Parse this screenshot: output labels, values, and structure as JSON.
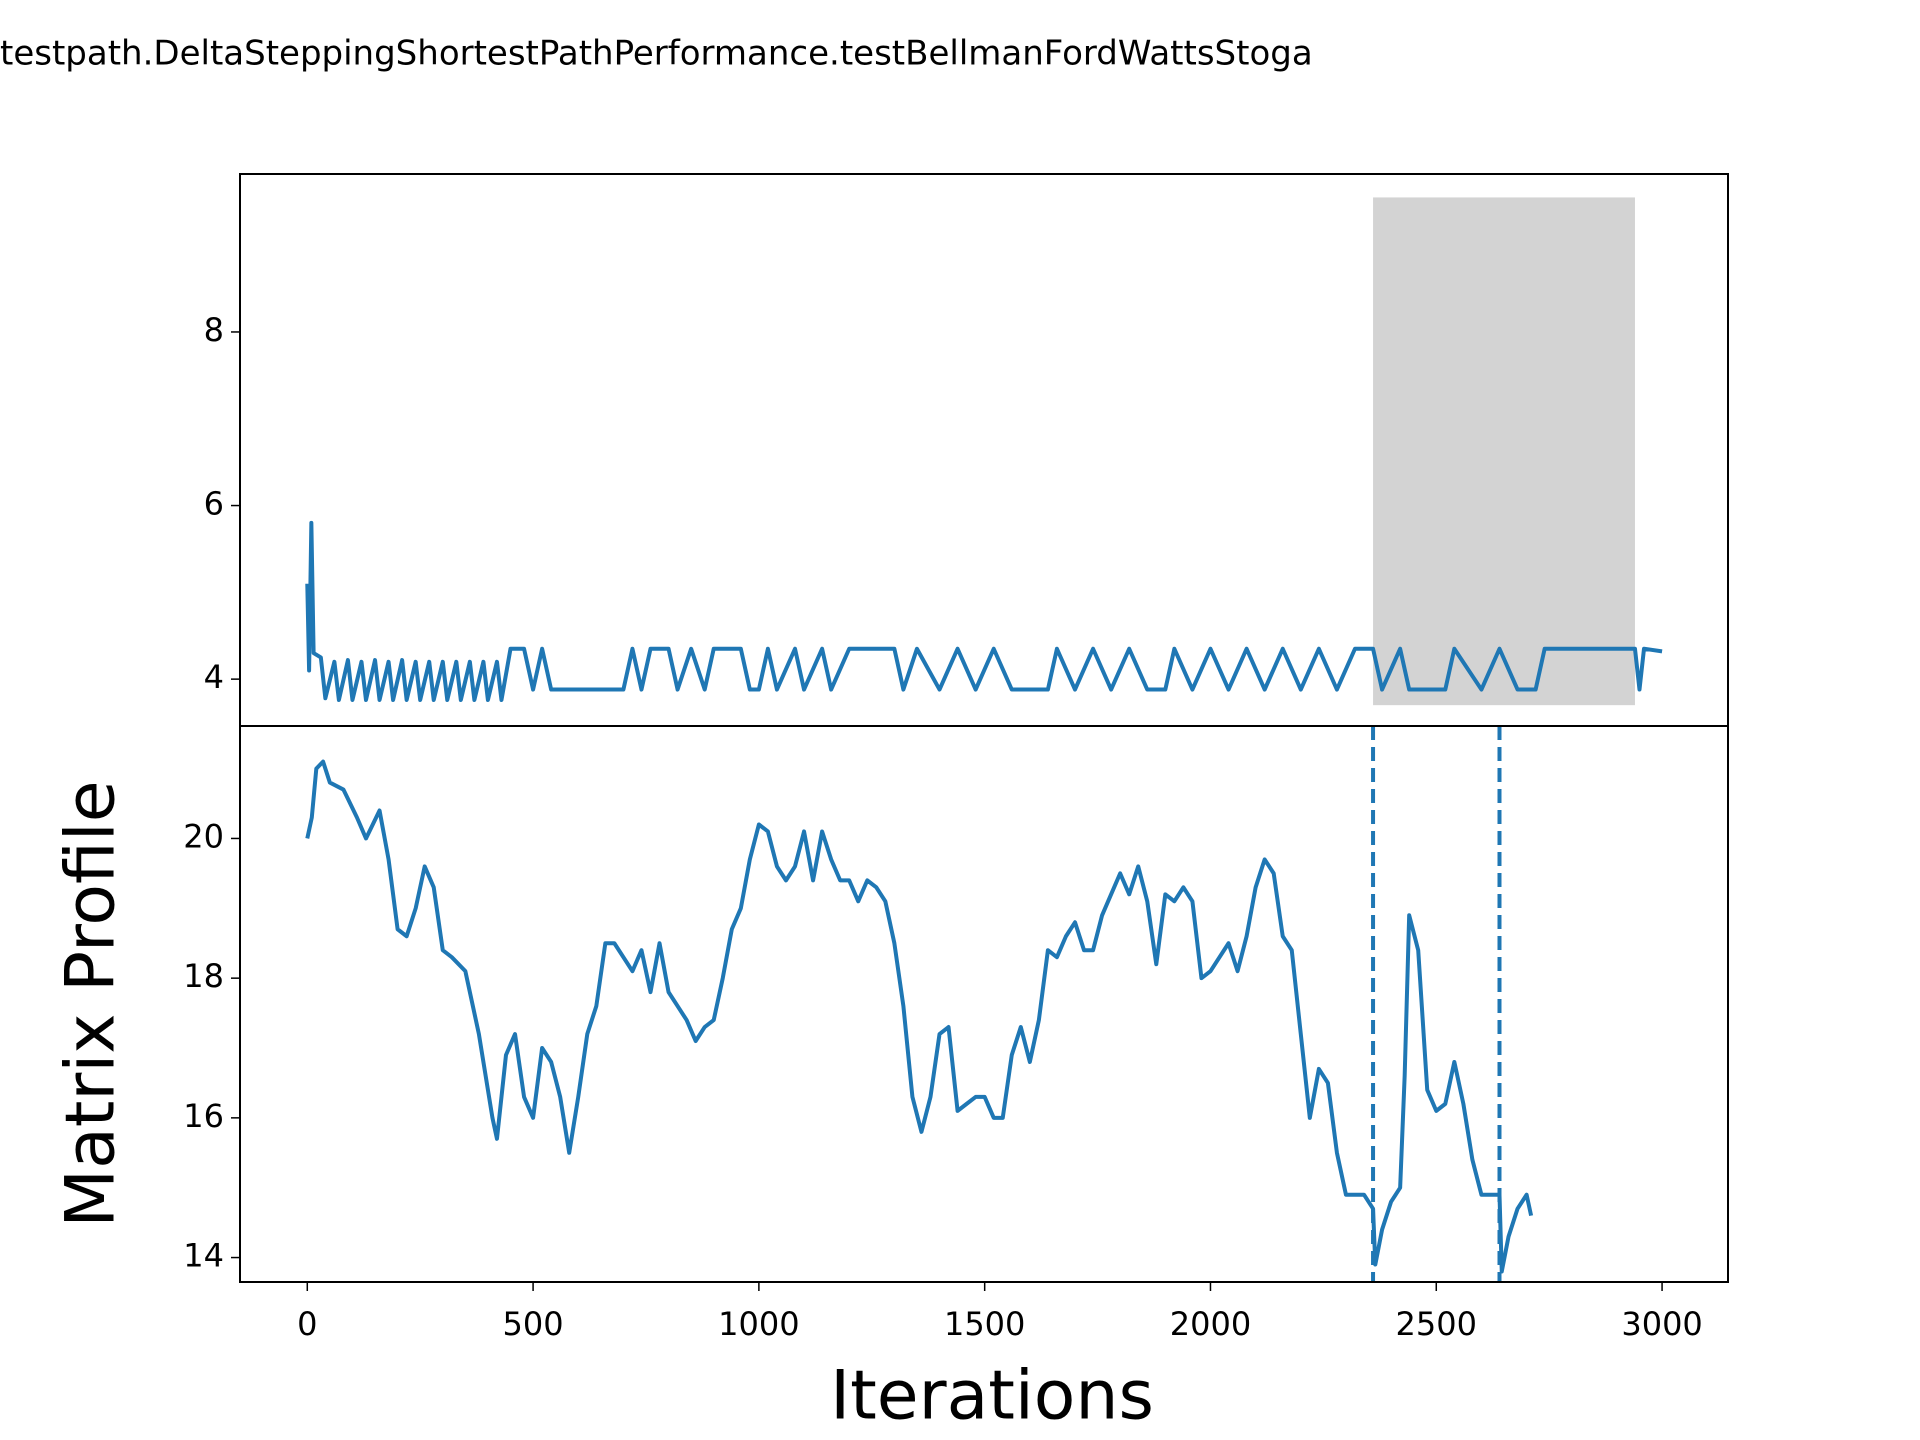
{
  "chart_data": [
    {
      "type": "line",
      "title": "testpath.DeltaSteppingShortestPathPerformance.testBellmanFordWattsStoga",
      "xlim": [
        -149,
        3146
      ],
      "ylim": [
        3.46,
        9.82
      ],
      "yticks": [
        4,
        6,
        8
      ],
      "region": {
        "x": [
          2360,
          2940
        ],
        "y": [
          3.7,
          9.55
        ],
        "color": "#d3d3d3"
      },
      "series": [
        {
          "color": "#1f77b4",
          "x": [
            0,
            4,
            9,
            14,
            30,
            40,
            60,
            70,
            90,
            100,
            120,
            130,
            150,
            160,
            180,
            190,
            210,
            220,
            240,
            250,
            270,
            280,
            300,
            310,
            330,
            340,
            360,
            370,
            390,
            400,
            420,
            430,
            450,
            480,
            500,
            520,
            540,
            700,
            720,
            740,
            760,
            800,
            820,
            850,
            880,
            900,
            960,
            980,
            1000,
            1020,
            1040,
            1080,
            1100,
            1140,
            1160,
            1200,
            1300,
            1320,
            1350,
            1400,
            1440,
            1480,
            1520,
            1560,
            1640,
            1660,
            1700,
            1740,
            1780,
            1820,
            1860,
            1900,
            1920,
            1960,
            2000,
            2040,
            2080,
            2120,
            2160,
            2200,
            2240,
            2280,
            2320,
            2360,
            2380,
            2420,
            2440,
            2520,
            2540,
            2600,
            2640,
            2680,
            2720,
            2740,
            2940,
            2950,
            2960,
            3000
          ],
          "values": [
            5.1,
            4.1,
            5.8,
            4.3,
            4.25,
            3.78,
            4.2,
            3.76,
            4.22,
            3.76,
            4.2,
            3.76,
            4.22,
            3.76,
            4.2,
            3.76,
            4.22,
            3.76,
            4.2,
            3.76,
            4.2,
            3.76,
            4.2,
            3.76,
            4.2,
            3.76,
            4.2,
            3.76,
            4.2,
            3.76,
            4.2,
            3.76,
            4.35,
            4.35,
            3.88,
            4.35,
            3.88,
            3.88,
            4.35,
            3.88,
            4.35,
            4.35,
            3.88,
            4.35,
            3.88,
            4.35,
            4.35,
            3.88,
            3.88,
            4.35,
            3.88,
            4.35,
            3.88,
            4.35,
            3.88,
            4.35,
            4.35,
            3.88,
            4.35,
            3.88,
            4.35,
            3.88,
            4.35,
            3.88,
            3.88,
            4.35,
            3.88,
            4.35,
            3.88,
            4.35,
            3.88,
            3.88,
            4.35,
            3.88,
            4.35,
            3.88,
            4.35,
            3.88,
            4.35,
            3.88,
            4.35,
            3.88,
            4.35,
            4.35,
            3.88,
            4.35,
            3.88,
            3.88,
            4.35,
            3.88,
            4.35,
            3.88,
            3.88,
            4.35,
            4.35,
            3.88,
            4.35,
            4.32
          ]
        }
      ]
    },
    {
      "type": "line",
      "xlabel": "Iterations",
      "ylabel": "Matrix Profile",
      "xlim": [
        -149,
        3146
      ],
      "ylim": [
        13.65,
        21.61
      ],
      "yticks": [
        14,
        16,
        18,
        20
      ],
      "xticks": [
        0,
        500,
        1000,
        1500,
        2000,
        2500,
        3000
      ],
      "vlines": {
        "x": [
          2360,
          2640
        ],
        "color": "#1f77b4"
      },
      "series": [
        {
          "color": "#1f77b4",
          "x": [
            0,
            10,
            20,
            35,
            50,
            80,
            110,
            130,
            160,
            180,
            200,
            220,
            240,
            260,
            280,
            300,
            320,
            350,
            380,
            410,
            420,
            440,
            460,
            480,
            500,
            520,
            540,
            560,
            580,
            600,
            620,
            640,
            660,
            680,
            700,
            720,
            740,
            760,
            780,
            800,
            820,
            840,
            860,
            880,
            900,
            920,
            940,
            960,
            980,
            1000,
            1020,
            1040,
            1060,
            1080,
            1100,
            1120,
            1140,
            1160,
            1180,
            1200,
            1220,
            1240,
            1260,
            1280,
            1300,
            1320,
            1340,
            1360,
            1380,
            1400,
            1420,
            1440,
            1460,
            1480,
            1500,
            1520,
            1540,
            1560,
            1580,
            1600,
            1620,
            1640,
            1660,
            1680,
            1700,
            1720,
            1740,
            1760,
            1780,
            1800,
            1820,
            1840,
            1860,
            1880,
            1900,
            1920,
            1940,
            1960,
            1980,
            2000,
            2020,
            2040,
            2060,
            2080,
            2100,
            2120,
            2140,
            2160,
            2180,
            2200,
            2220,
            2240,
            2260,
            2280,
            2300,
            2320,
            2340,
            2360,
            2365,
            2380,
            2400,
            2420,
            2430,
            2440,
            2460,
            2480,
            2500,
            2520,
            2540,
            2560,
            2580,
            2600,
            2620,
            2640,
            2645,
            2660,
            2680,
            2700,
            2710
          ],
          "values": [
            20,
            20.3,
            21.0,
            21.1,
            20.8,
            20.7,
            20.3,
            20.0,
            20.4,
            19.7,
            18.7,
            18.6,
            19.0,
            19.6,
            19.3,
            18.4,
            18.3,
            18.1,
            17.2,
            16.0,
            15.7,
            16.9,
            17.2,
            16.3,
            16.0,
            17.0,
            16.8,
            16.3,
            15.5,
            16.3,
            17.2,
            17.6,
            18.5,
            18.5,
            18.3,
            18.1,
            18.4,
            17.8,
            18.5,
            17.8,
            17.6,
            17.4,
            17.1,
            17.3,
            17.4,
            18.0,
            18.7,
            19.0,
            19.7,
            20.2,
            20.1,
            19.6,
            19.4,
            19.6,
            20.1,
            19.4,
            20.1,
            19.7,
            19.4,
            19.4,
            19.1,
            19.4,
            19.3,
            19.1,
            18.5,
            17.6,
            16.3,
            15.8,
            16.3,
            17.2,
            17.3,
            16.1,
            16.2,
            16.3,
            16.3,
            16.0,
            16.0,
            16.9,
            17.3,
            16.8,
            17.4,
            18.4,
            18.3,
            18.6,
            18.8,
            18.4,
            18.4,
            18.9,
            19.2,
            19.5,
            19.2,
            19.6,
            19.1,
            18.2,
            19.2,
            19.1,
            19.3,
            19.1,
            18.0,
            18.1,
            18.3,
            18.5,
            18.1,
            18.6,
            19.3,
            19.7,
            19.5,
            18.6,
            18.4,
            17.2,
            16.0,
            16.7,
            16.5,
            15.5,
            14.9,
            14.9,
            14.9,
            14.7,
            13.9,
            14.4,
            14.8,
            15.0,
            16.6,
            18.9,
            18.4,
            16.4,
            16.1,
            16.2,
            16.8,
            16.2,
            15.4,
            14.9,
            14.9,
            14.9,
            13.8,
            14.3,
            14.7,
            14.9,
            14.6
          ]
        }
      ]
    }
  ]
}
